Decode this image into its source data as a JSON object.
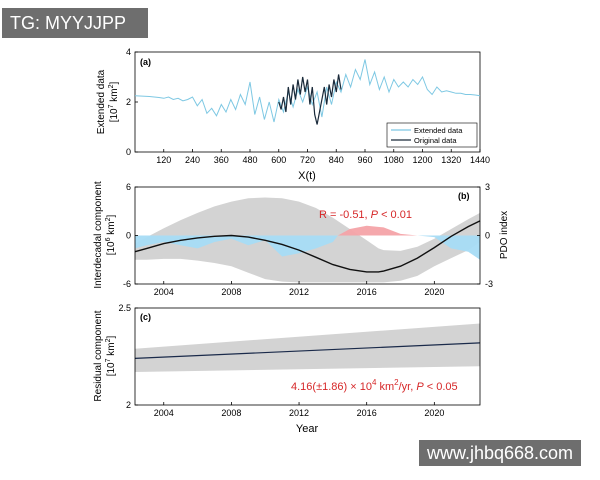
{
  "watermarks": {
    "top": "TG: MYYJJPP",
    "bottom": "www.jhbq668.com"
  },
  "colors": {
    "extended": "#7ec8e3",
    "original": "#1a2a3a",
    "fill_blue": "#a7dcf5",
    "fill_red": "#f4a3a8",
    "band_gray": "#d3d3d3",
    "annot_red": "#d62728",
    "axis": "#000000"
  },
  "chart_data": [
    {
      "panel": "(a)",
      "type": "line",
      "ylabel_line1": "Extended data",
      "ylabel_line2": "[10",
      "ylabel_sup": "7",
      "ylabel_unit": " km",
      "ylabel_unit_sup": "2",
      "ylabel_close": "]",
      "xlabel": "X(t)",
      "xlim": [
        0,
        1440
      ],
      "ylim": [
        0,
        4
      ],
      "xticks": [
        120,
        240,
        360,
        480,
        600,
        720,
        840,
        960,
        1080,
        1200,
        1320,
        1440
      ],
      "yticks": [
        0,
        2,
        4
      ],
      "legend": {
        "position": "bottom-right",
        "entries": [
          "Extended data",
          "Original data"
        ]
      },
      "series": [
        {
          "name": "Extended data",
          "x": [
            0,
            20,
            40,
            60,
            80,
            100,
            120,
            140,
            160,
            180,
            200,
            220,
            240,
            260,
            280,
            300,
            320,
            340,
            360,
            380,
            400,
            420,
            440,
            460,
            480,
            500,
            520,
            540,
            560,
            580,
            600,
            620,
            640,
            660,
            680,
            700,
            720,
            740,
            760,
            780,
            800,
            820,
            840,
            860,
            880,
            900,
            920,
            940,
            960,
            980,
            1000,
            1020,
            1040,
            1060,
            1080,
            1100,
            1120,
            1140,
            1160,
            1180,
            1200,
            1220,
            1240,
            1260,
            1280,
            1300,
            1320,
            1340,
            1360,
            1380,
            1400,
            1420,
            1440
          ],
          "values": [
            2.25,
            2.24,
            2.23,
            2.22,
            2.2,
            2.18,
            2.15,
            2.2,
            2.1,
            2.15,
            2.05,
            2.1,
            2.2,
            1.85,
            2.1,
            1.55,
            1.75,
            1.45,
            1.9,
            1.6,
            2.1,
            1.7,
            2.3,
            1.9,
            2.8,
            1.5,
            2.2,
            1.3,
            2.0,
            1.2,
            2.1,
            1.6,
            2.4,
            1.8,
            2.5,
            2.0,
            2.6,
            1.9,
            2.4,
            1.4,
            2.6,
            1.9,
            2.8,
            2.4,
            3.1,
            2.6,
            3.3,
            2.9,
            3.7,
            2.7,
            3.2,
            2.5,
            3.0,
            2.4,
            2.9,
            2.6,
            2.8,
            2.6,
            2.9,
            2.7,
            3.0,
            2.5,
            2.3,
            2.6,
            2.4,
            2.45,
            2.4,
            2.35,
            2.35,
            2.3,
            2.3,
            2.28,
            2.25
          ]
        },
        {
          "name": "Original data",
          "x": [
            600,
            610,
            620,
            630,
            640,
            650,
            660,
            670,
            680,
            690,
            700,
            710,
            720,
            730,
            740,
            750,
            760,
            770,
            780,
            790,
            800,
            810,
            820,
            830,
            840,
            850,
            860
          ],
          "values": [
            2.0,
            1.7,
            2.2,
            1.6,
            2.6,
            1.9,
            2.7,
            2.1,
            2.9,
            2.3,
            3.0,
            2.4,
            2.9,
            1.9,
            2.6,
            1.5,
            1.1,
            1.6,
            2.1,
            2.6,
            1.9,
            2.7,
            2.2,
            2.9,
            2.4,
            3.1,
            2.5
          ]
        }
      ]
    },
    {
      "panel": "(b)",
      "type": "area",
      "ylabel_line1": "Interdecadal component",
      "ylabel_line2": "[10",
      "ylabel_sup": "6",
      "ylabel_unit": " km",
      "ylabel_unit_sup": "2",
      "ylabel_close": "]",
      "y2label": "PDO index",
      "xlim": [
        2002.3,
        2022.7
      ],
      "ylim": [
        -6,
        6
      ],
      "y2lim": [
        -3,
        3
      ],
      "xticks": [
        2004,
        2008,
        2012,
        2016,
        2020
      ],
      "yticks": [
        -6,
        0,
        6
      ],
      "y2ticks": [
        -3,
        0,
        3
      ],
      "annotation": {
        "prefix": "R = -0.51, ",
        "p_italic": "P",
        "suffix": " < 0.01"
      },
      "series": [
        {
          "name": "Interdecadal component",
          "x": [
            2002.3,
            2003,
            2004,
            2005,
            2006,
            2007,
            2008,
            2009,
            2010,
            2011,
            2012,
            2013,
            2014,
            2015,
            2016,
            2016.7,
            2017,
            2018,
            2019,
            2020,
            2021,
            2022,
            2022.7
          ],
          "values": [
            -2.0,
            -1.6,
            -1.0,
            -0.6,
            -0.3,
            -0.1,
            0.0,
            -0.2,
            -0.6,
            -1.1,
            -1.8,
            -2.7,
            -3.6,
            -4.2,
            -4.5,
            -4.5,
            -4.4,
            -3.8,
            -2.8,
            -1.5,
            -0.1,
            1.1,
            1.8
          ],
          "upper": [
            -1.0,
            -0.2,
            0.9,
            1.9,
            2.8,
            3.6,
            4.2,
            4.6,
            4.7,
            4.6,
            4.2,
            3.4,
            2.2,
            0.8,
            -0.6,
            -1.6,
            -1.8,
            -1.9,
            -1.4,
            -0.4,
            0.8,
            2.0,
            2.8
          ],
          "lower": [
            -3.0,
            -3.0,
            -2.9,
            -2.9,
            -3.1,
            -3.4,
            -3.8,
            -4.6,
            -5.4,
            -5.7,
            -5.8,
            -5.8,
            -5.8,
            -5.8,
            -5.8,
            -5.8,
            -5.8,
            -5.6,
            -5.0,
            -3.8,
            -2.8,
            -1.8,
            -0.8
          ]
        },
        {
          "name": "PDO index",
          "x": [
            2002.3,
            2003,
            2004,
            2005,
            2006,
            2007,
            2008,
            2009,
            2010,
            2011,
            2012,
            2013,
            2014,
            2014.3,
            2015,
            2016,
            2017,
            2018,
            2019,
            2020,
            2021,
            2022,
            2022.7
          ],
          "values": [
            -0.8,
            -0.6,
            -0.4,
            -0.6,
            -0.8,
            -0.4,
            -0.2,
            -0.6,
            -0.3,
            -1.3,
            -1.1,
            -0.8,
            -0.4,
            0.0,
            0.4,
            0.6,
            0.5,
            0.1,
            0.0,
            -0.1,
            -0.8,
            -1.0,
            -1.5
          ]
        }
      ]
    },
    {
      "panel": "(c)",
      "type": "line",
      "ylabel_line1": "Residual component",
      "ylabel_line2": "[10",
      "ylabel_sup": "7",
      "ylabel_unit": " km",
      "ylabel_unit_sup": "2",
      "ylabel_close": "]",
      "xlabel": "Year",
      "xlim": [
        2002.3,
        2022.7
      ],
      "ylim": [
        2,
        2.5
      ],
      "xticks": [
        2004,
        2008,
        2012,
        2016,
        2020
      ],
      "yticks": [
        2,
        2.5
      ],
      "annotation": {
        "trend_text": "4.16(±1.86) × 10",
        "exp": "4",
        "unit": " km",
        "unit_exp": "2",
        "rate": "/yr, ",
        "p_italic": "P",
        "suffix": " < 0.05"
      },
      "series": [
        {
          "name": "Residual component",
          "x": [
            2002.3,
            2022.7
          ],
          "values": [
            2.24,
            2.32
          ],
          "upper": [
            2.29,
            2.42
          ],
          "lower": [
            2.17,
            2.2
          ]
        }
      ]
    }
  ]
}
